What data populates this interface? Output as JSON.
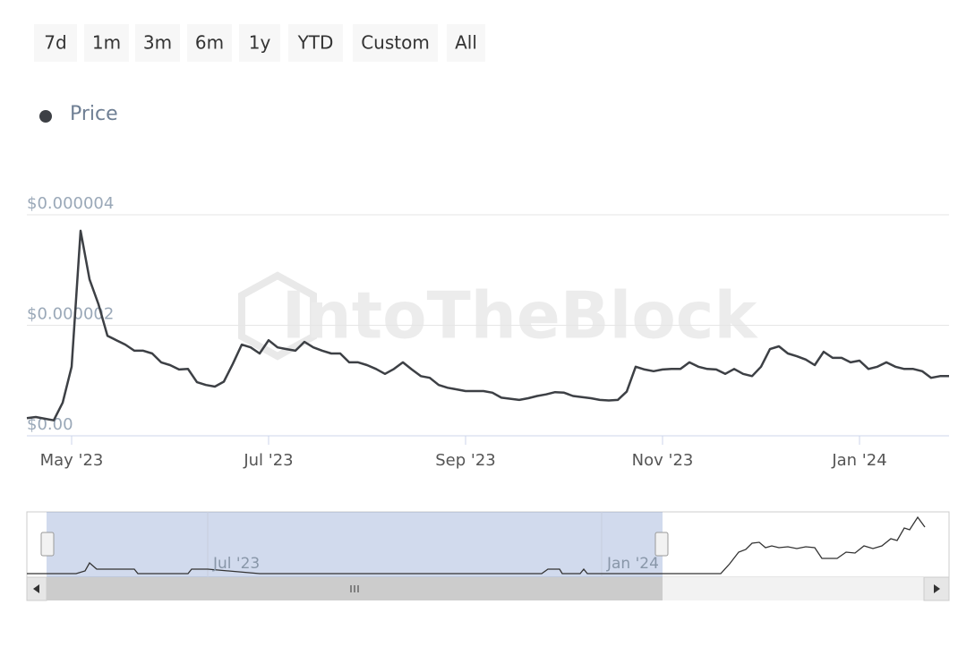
{
  "range_selector": {
    "buttons": [
      "7d",
      "1m",
      "3m",
      "6m",
      "1y",
      "YTD",
      "Custom",
      "All"
    ]
  },
  "chart_data": {
    "type": "line",
    "watermark": "IntoTheBlock",
    "categories": [
      null,
      null,
      null,
      null,
      null,
      "May '23",
      null,
      null,
      null,
      null,
      null,
      null,
      null,
      null,
      null,
      null,
      null,
      null,
      null,
      null,
      null,
      null,
      null,
      null,
      null,
      null,
      null,
      "Jul '23",
      null,
      null,
      null,
      null,
      null,
      null,
      null,
      null,
      null,
      null,
      null,
      null,
      null,
      null,
      null,
      null,
      null,
      null,
      null,
      null,
      null,
      "Sep '23",
      null,
      null,
      null,
      null,
      null,
      null,
      null,
      null,
      null,
      null,
      null,
      null,
      null,
      null,
      null,
      null,
      null,
      null,
      null,
      null,
      null,
      "Nov '23",
      null,
      null,
      null,
      null,
      null,
      null,
      null,
      null,
      null,
      null,
      null,
      null,
      null,
      null,
      null,
      null,
      null,
      null,
      null,
      null,
      null,
      "Jan '24",
      null,
      null,
      null,
      null,
      null,
      null,
      null,
      null,
      null,
      null
    ],
    "series": [
      {
        "name": "Price",
        "color": "#3d4045",
        "values": [
          3.2e-07,
          3.4e-07,
          3.1e-07,
          2.8e-07,
          6e-07,
          1.25e-06,
          3.71e-06,
          2.83e-06,
          2.38e-06,
          1.81e-06,
          1.73e-06,
          1.65e-06,
          1.54e-06,
          1.54e-06,
          1.49e-06,
          1.33e-06,
          1.28e-06,
          1.2e-06,
          1.21e-06,
          9.7e-07,
          9.2e-07,
          8.9e-07,
          9.8e-07,
          1.3e-06,
          1.65e-06,
          1.6e-06,
          1.49e-06,
          1.73e-06,
          1.6e-06,
          1.57e-06,
          1.54e-06,
          1.7e-06,
          1.6e-06,
          1.54e-06,
          1.49e-06,
          1.49e-06,
          1.33e-06,
          1.33e-06,
          1.28e-06,
          1.21e-06,
          1.12e-06,
          1.21e-06,
          1.33e-06,
          1.2e-06,
          1.08e-06,
          1.05e-06,
          9.2e-07,
          8.7e-07,
          8.4e-07,
          8.1e-07,
          8.1e-07,
          8.1e-07,
          7.8e-07,
          6.9e-07,
          6.7e-07,
          6.5e-07,
          6.8e-07,
          7.2e-07,
          7.5e-07,
          7.9e-07,
          7.8e-07,
          7.2e-07,
          7e-07,
          6.8e-07,
          6.5e-07,
          6.4e-07,
          6.5e-07,
          8e-07,
          1.25e-06,
          1.2e-06,
          1.17e-06,
          1.2e-06,
          1.21e-06,
          1.21e-06,
          1.33e-06,
          1.25e-06,
          1.21e-06,
          1.2e-06,
          1.12e-06,
          1.21e-06,
          1.12e-06,
          1.08e-06,
          1.25e-06,
          1.57e-06,
          1.62e-06,
          1.49e-06,
          1.44e-06,
          1.38e-06,
          1.28e-06,
          1.52e-06,
          1.41e-06,
          1.41e-06,
          1.33e-06,
          1.36e-06,
          1.21e-06,
          1.25e-06,
          1.33e-06,
          1.25e-06,
          1.21e-06,
          1.21e-06,
          1.17e-06,
          1.05e-06,
          1.08e-06,
          1.08e-06
        ]
      }
    ],
    "ylim": [
      0,
      4e-06
    ],
    "yticks": [
      {
        "value": 0,
        "label": "$0.00"
      },
      {
        "value": 2e-06,
        "label": "$0.000002"
      },
      {
        "value": 4e-06,
        "label": "$0.000004"
      }
    ],
    "grid": true,
    "legend": "top-left"
  },
  "navigator": {
    "labels": [
      "Jul '23",
      "Jan '24"
    ]
  }
}
